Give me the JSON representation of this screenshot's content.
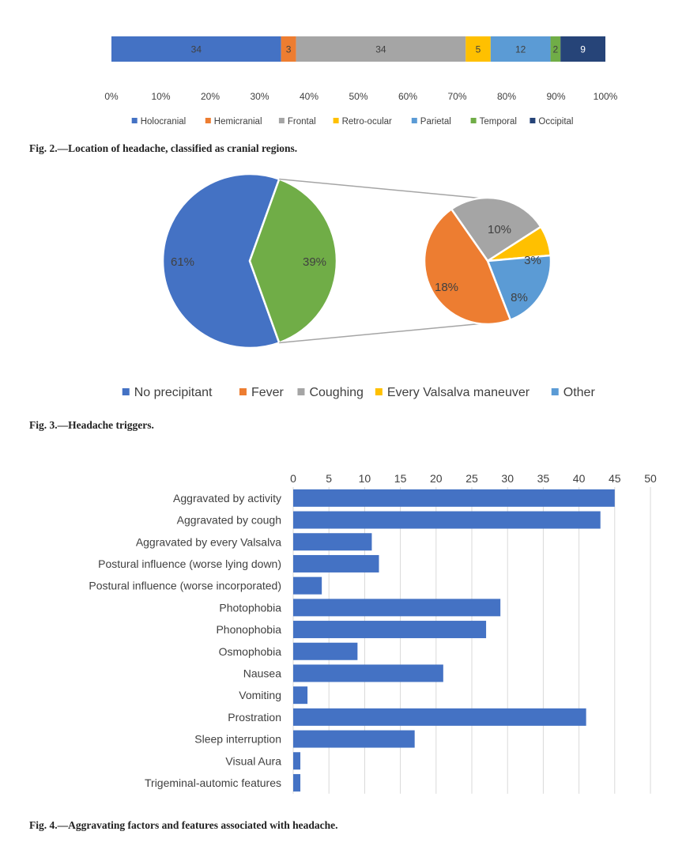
{
  "chart_data": [
    {
      "type": "bar",
      "orientation": "horizontal-stacked-100",
      "categories": [
        "Location of headache"
      ],
      "series": [
        {
          "name": "Holocranial",
          "values": [
            34
          ],
          "color": "#4472C4"
        },
        {
          "name": "Hemicranial",
          "values": [
            3
          ],
          "color": "#ED7D31"
        },
        {
          "name": "Frontal",
          "values": [
            34
          ],
          "color": "#A5A5A5"
        },
        {
          "name": "Retro-ocular",
          "values": [
            5
          ],
          "color": "#FFC000"
        },
        {
          "name": "Parietal",
          "values": [
            12
          ],
          "color": "#5B9BD5"
        },
        {
          "name": "Temporal",
          "values": [
            2
          ],
          "color": "#70AD47"
        },
        {
          "name": "Occipital",
          "values": [
            9
          ],
          "color": "#264478"
        }
      ],
      "xticks": [
        "0%",
        "10%",
        "20%",
        "30%",
        "40%",
        "50%",
        "60%",
        "70%",
        "80%",
        "90%",
        "100%"
      ],
      "xlim": [
        0,
        100
      ],
      "legend": "bottom",
      "caption": "Fig. 2.—Location of headache, classified as cranial regions."
    },
    {
      "type": "pie",
      "subtype": "pie-of-pie",
      "main_slices": [
        {
          "name": "No precipitant",
          "value": 61,
          "label": "61%",
          "color": "#4472C4"
        },
        {
          "name": "",
          "value": 39,
          "label": "39%",
          "color": "#70AD47"
        }
      ],
      "secondary_slices": [
        {
          "name": "Fever",
          "value": 18,
          "label": "18%",
          "color": "#ED7D31"
        },
        {
          "name": "Coughing",
          "value": 10,
          "label": "10%",
          "color": "#A5A5A5"
        },
        {
          "name": "Every Valsalva maneuver",
          "value": 3,
          "label": "3%",
          "color": "#FFC000"
        },
        {
          "name": "Other",
          "value": 8,
          "label": "8%",
          "color": "#5B9BD5"
        }
      ],
      "legend_items": [
        {
          "name": "No precipitant",
          "color": "#4472C4"
        },
        {
          "name": "Fever",
          "color": "#ED7D31"
        },
        {
          "name": "Coughing",
          "color": "#A5A5A5"
        },
        {
          "name": "Every Valsalva maneuver",
          "color": "#FFC000"
        },
        {
          "name": "Other",
          "color": "#5B9BD5"
        }
      ],
      "legend": "bottom",
      "caption": "Fig. 3.—Headache triggers."
    },
    {
      "type": "bar",
      "orientation": "horizontal",
      "categories": [
        "Aggravated by activity",
        "Aggravated by cough",
        "Aggravated by every Valsalva",
        "Postural influence (worse lying down)",
        "Postural influence (worse incorporated)",
        "Photophobia",
        "Phonophobia",
        "Osmophobia",
        "Nausea",
        "Vomiting",
        "Prostration",
        "Sleep interruption",
        "Visual Aura",
        "Trigeminal-automic features"
      ],
      "values": [
        45,
        43,
        11,
        12,
        4,
        29,
        27,
        9,
        21,
        2,
        41,
        17,
        1,
        1
      ],
      "color": "#4472C4",
      "xlim": [
        0,
        50
      ],
      "xticks": [
        "0",
        "5",
        "10",
        "15",
        "20",
        "25",
        "30",
        "35",
        "40",
        "45",
        "50"
      ],
      "xaxis_position": "top",
      "grid": true,
      "caption": "Fig. 4.—Aggravating factors and features associated with headache."
    }
  ]
}
